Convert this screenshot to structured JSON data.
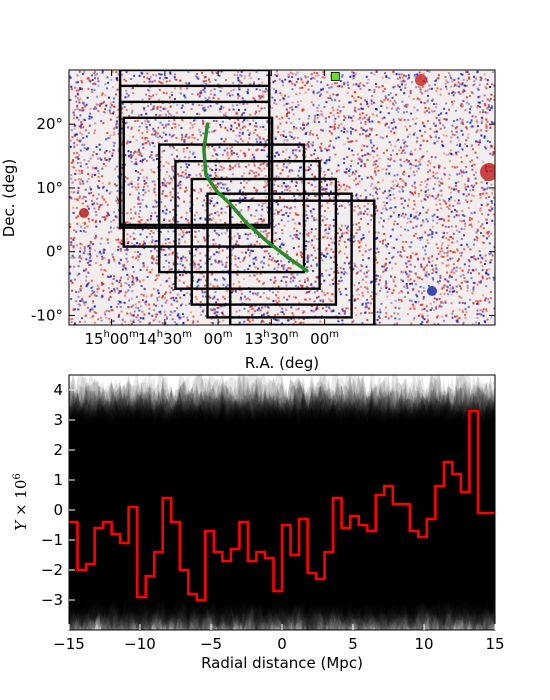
{
  "chart_data": [
    {
      "type": "heatmap",
      "xlabel": "R.A. (deg)",
      "ylabel": "Dec. (deg)",
      "x_ticks": [
        {
          "h": "15",
          "hsup": "h",
          "m": "00",
          "msup": "m"
        },
        {
          "h": "14",
          "hsup": "h",
          "m": "30",
          "msup": "m"
        },
        {
          "h": "",
          "hsup": "",
          "m": "00",
          "msup": "m"
        },
        {
          "h": "13",
          "hsup": "h",
          "m": "30",
          "msup": "m"
        },
        {
          "h": "",
          "hsup": "",
          "m": "00",
          "msup": "m"
        }
      ],
      "x_tick_ra": [
        225,
        217.5,
        210,
        202.5,
        195
      ],
      "y_ticks": [
        "20°",
        "10°",
        "0°",
        "-10°"
      ],
      "y_tick_values": [
        20,
        10,
        0,
        -10
      ],
      "xlim_ra": [
        231,
        171
      ],
      "ylim_dec": [
        -11.5,
        28.5
      ],
      "map_colors": {
        "positive": "#e03020",
        "negative": "#1020c8",
        "background": "#f2eeee"
      },
      "marker_color": "#66dd33",
      "marker_position": {
        "ra": 193.5,
        "dec": 27.5
      },
      "track_color": "#2a8a2a",
      "track": [
        [
          211.5,
          20
        ],
        [
          212.0,
          16
        ],
        [
          211.7,
          12
        ],
        [
          210.2,
          9.5
        ],
        [
          208.3,
          7.5
        ],
        [
          206.0,
          4.5
        ],
        [
          203.0,
          1.5
        ],
        [
          199.8,
          -1.2
        ],
        [
          197.5,
          -3.0
        ]
      ],
      "rectangles": [
        {
          "ra_left": 223.8,
          "ra_right": 202.8,
          "dec_bottom": 3.8,
          "dec_top": 28.5
        },
        {
          "ra_left": 223.8,
          "ra_right": 202.8,
          "dec_bottom": 4.2,
          "dec_top": 26.0
        },
        {
          "ra_left": 223.8,
          "ra_right": 202.8,
          "dec_bottom": 3.8,
          "dec_top": 23.5
        },
        {
          "ra_left": 223.3,
          "ra_right": 202.4,
          "dec_bottom": 0.8,
          "dec_top": 21.0
        },
        {
          "ra_left": 218.3,
          "ra_right": 197.9,
          "dec_bottom": -3.2,
          "dec_top": 16.8
        },
        {
          "ra_left": 216.0,
          "ra_right": 195.7,
          "dec_bottom": -5.8,
          "dec_top": 14.2
        },
        {
          "ra_left": 213.7,
          "ra_right": 193.4,
          "dec_bottom": -8.3,
          "dec_top": 11.4
        },
        {
          "ra_left": 211.5,
          "ra_right": 191.2,
          "dec_bottom": -10.3,
          "dec_top": 9.1
        },
        {
          "ra_left": 208.3,
          "ra_right": 188.0,
          "dec_bottom": -11.5,
          "dec_top": 8.0
        }
      ]
    },
    {
      "type": "line",
      "xlabel": "Radial distance (Mpc)",
      "ylabel_main": "Y",
      "ylabel_rest": " × 10",
      "ylabel_exp": "6",
      "xlim": [
        -15,
        15
      ],
      "ylim": [
        -4,
        4.5
      ],
      "x_ticks": [
        "−15",
        "−10",
        "−5",
        "0",
        "5",
        "10",
        "15"
      ],
      "x_tick_values": [
        -15,
        -10,
        -5,
        0,
        5,
        10,
        15
      ],
      "y_ticks": [
        "−3",
        "−2",
        "−1",
        "0",
        "1",
        "2",
        "3",
        "4"
      ],
      "y_tick_values": [
        -3,
        -2,
        -1,
        0,
        1,
        2,
        3,
        4
      ],
      "series": [
        {
          "color": "#ff0000",
          "style": "steps",
          "bin_width": 0.6,
          "x_start": -15,
          "values": [
            -0.4,
            -2.0,
            -1.8,
            -0.6,
            -0.4,
            -0.8,
            -1.1,
            0.1,
            -2.9,
            -2.2,
            -1.4,
            0.4,
            -0.4,
            -2.0,
            -2.8,
            -3.0,
            -0.7,
            -1.4,
            -1.7,
            -1.3,
            -0.4,
            -1.7,
            -1.4,
            -1.6,
            -2.7,
            -0.5,
            -1.5,
            -0.3,
            -2.1,
            -2.3,
            -1.4,
            0.4,
            -0.6,
            -0.2,
            -0.5,
            -0.7,
            0.5,
            0.8,
            0.2,
            0.2,
            -0.7,
            -0.9,
            -0.3,
            0.8,
            1.6,
            1.2,
            0.6,
            3.3,
            -0.1,
            -0.1
          ]
        }
      ],
      "band_color": "#000000"
    }
  ]
}
